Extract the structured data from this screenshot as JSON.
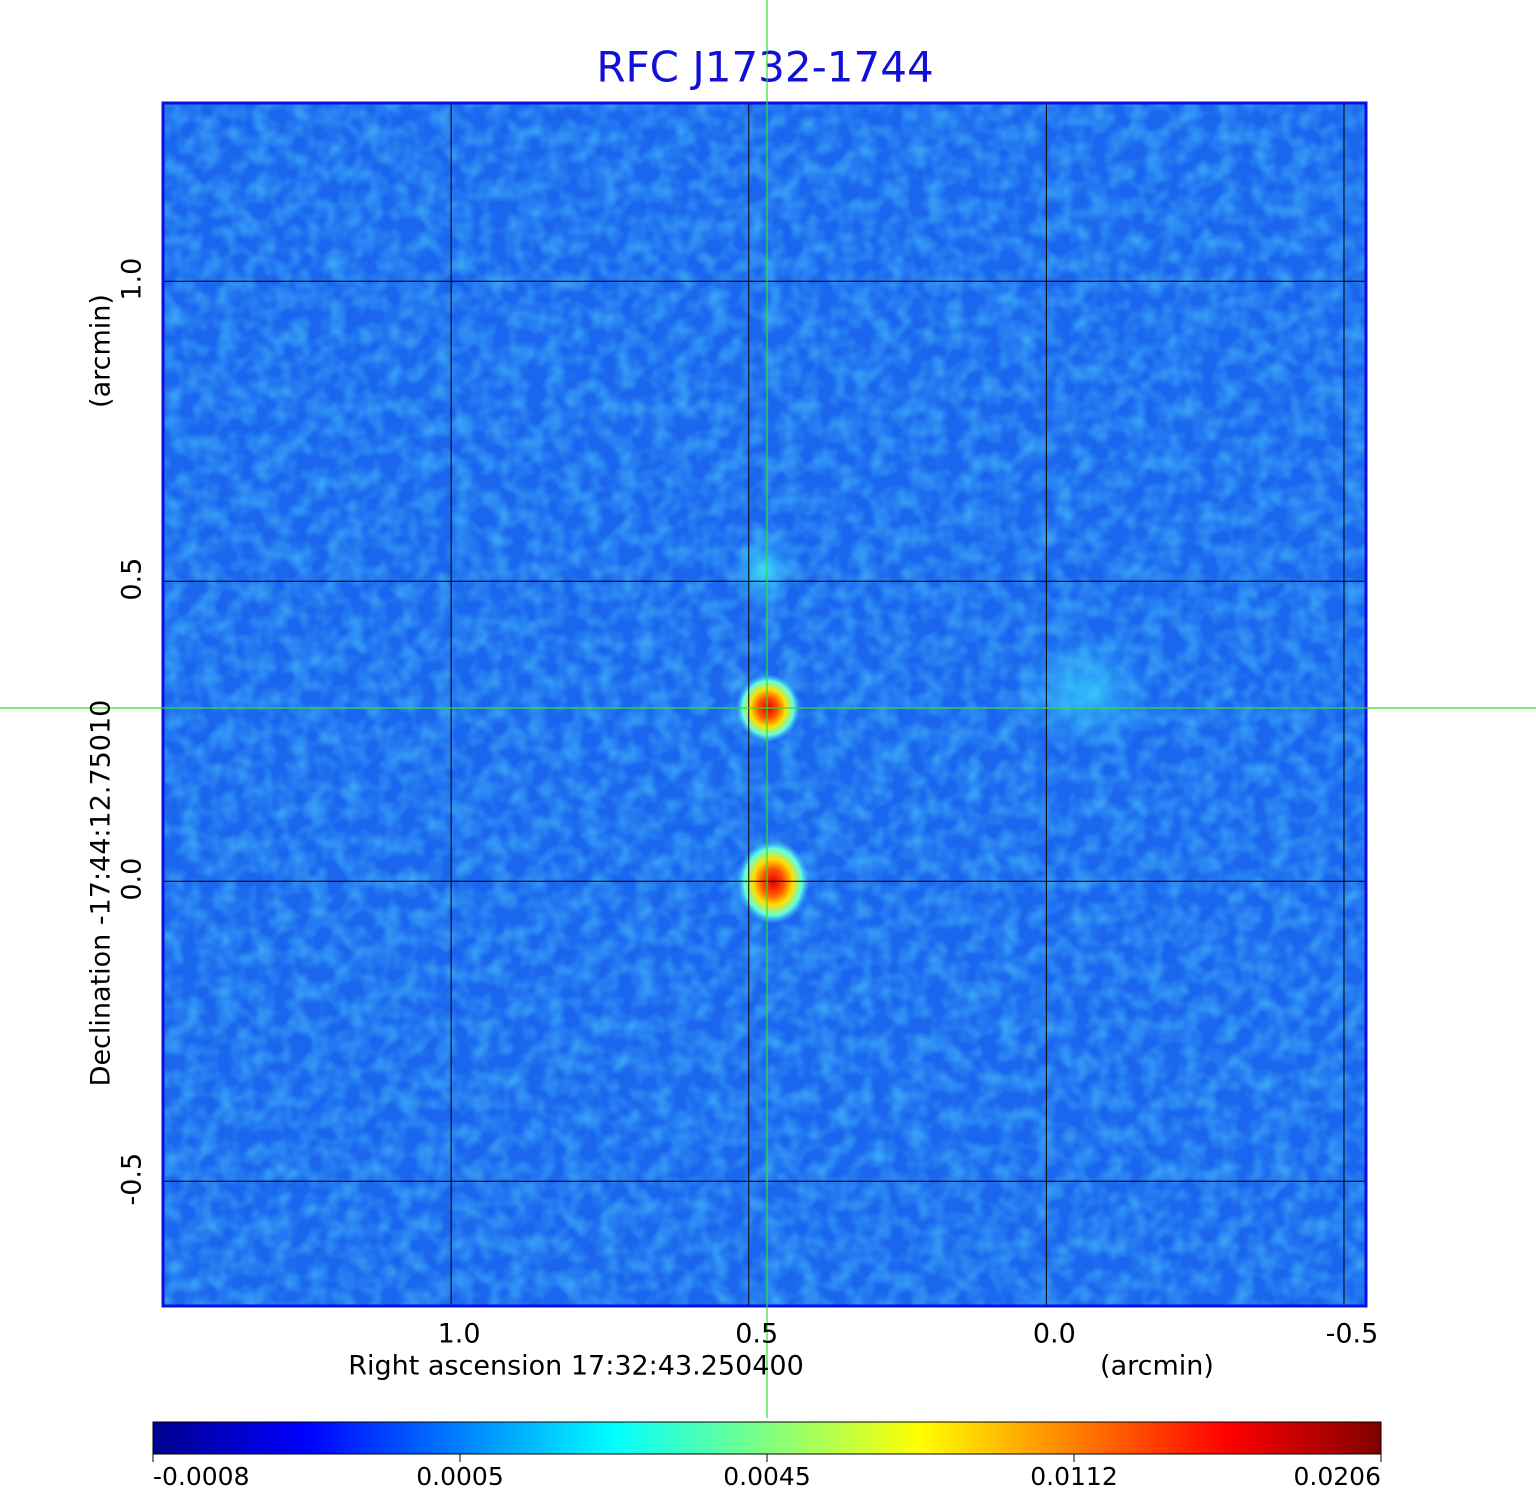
{
  "chart_data": {
    "type": "image",
    "title": "RFC J1732-1744",
    "x_label": "Right ascension  17:32:43.250400",
    "x_unit": "(arcmin)",
    "y_label": "Declination  -17:44:12.75010",
    "y_unit": "(arcmin)",
    "xlim": [
      1.484,
      -0.537
    ],
    "ylim": [
      -0.708,
      1.297
    ],
    "xticks": [
      {
        "value": 1,
        "label": "1.0"
      },
      0.5,
      {
        "value": 0,
        "label": "0.0"
      },
      -0.5
    ],
    "yticks": [
      {
        "value": 1,
        "label": "1.0"
      },
      0.5,
      {
        "value": 0,
        "label": "0.0"
      },
      -0.5
    ],
    "grid": true,
    "colorbar": {
      "ticks": [
        -0.0008,
        0.0005,
        0.0045,
        0.0112,
        0.0206
      ],
      "colormap": [
        "#00008f",
        "#0000ff",
        "#0080ff",
        "#00ffff",
        "#80ff80",
        "#ffff00",
        "#ff8000",
        "#ff0000",
        "#800000"
      ]
    }
  }
}
